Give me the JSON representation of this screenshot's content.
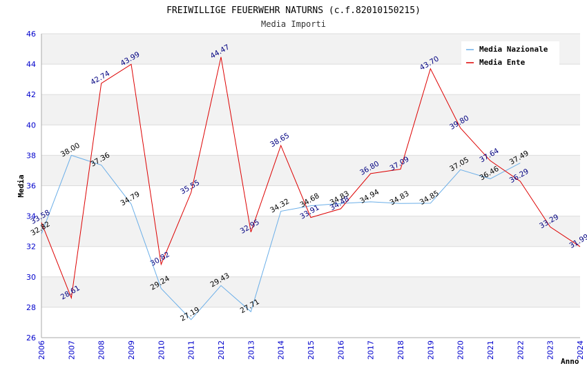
{
  "chart_data": {
    "type": "line",
    "title": "FREIWILLIGE FEUERWEHR NATURNS (c.f.82010150215)",
    "subtitle": "Media Importi",
    "xlabel": "Anno",
    "ylabel": "Media",
    "ylim": [
      26,
      46
    ],
    "yticks": [
      "26",
      "28",
      "30",
      "32",
      "34",
      "36",
      "38",
      "40",
      "42",
      "44",
      "46"
    ],
    "x": [
      "2006",
      "2007",
      "2008",
      "2009",
      "2010",
      "2011",
      "2012",
      "2013",
      "2014",
      "2015",
      "2016",
      "2017",
      "2018",
      "2019",
      "2020",
      "2021",
      "2022",
      "2023",
      "2024"
    ],
    "legend_position": "top-right",
    "series": [
      {
        "name": "Media Nazionale",
        "color": "#6aaee8",
        "values": [
          32.82,
          38.0,
          37.36,
          34.79,
          29.24,
          27.19,
          29.43,
          27.71,
          34.32,
          34.68,
          34.83,
          34.94,
          34.83,
          34.85,
          37.05,
          36.46,
          37.49,
          null,
          null
        ],
        "labels": [
          "32.82",
          "38.00",
          "37.36",
          "34.79",
          "29.24",
          "27.19",
          "29.43",
          "27.71",
          "34.32",
          "34.68",
          "34.83",
          "34.94",
          "34.83",
          "34.85",
          "37.05",
          "36.46",
          "37.49",
          "",
          ""
        ]
      },
      {
        "name": "Media Ente",
        "color": "#dd0000",
        "values": [
          33.58,
          28.61,
          42.74,
          43.99,
          30.82,
          35.55,
          44.47,
          32.95,
          38.65,
          33.91,
          34.48,
          36.8,
          37.09,
          43.7,
          39.8,
          37.64,
          36.29,
          33.29,
          31.99
        ],
        "labels": [
          "33.58",
          "28.61",
          "42.74",
          "43.99",
          "30.82",
          "35.55",
          "44.47",
          "32.95",
          "38.65",
          "33.91",
          "34.48",
          "36.80",
          "37.09",
          "43.70",
          "39.80",
          "37.64",
          "36.29",
          "33.29",
          "31.99"
        ]
      }
    ]
  }
}
